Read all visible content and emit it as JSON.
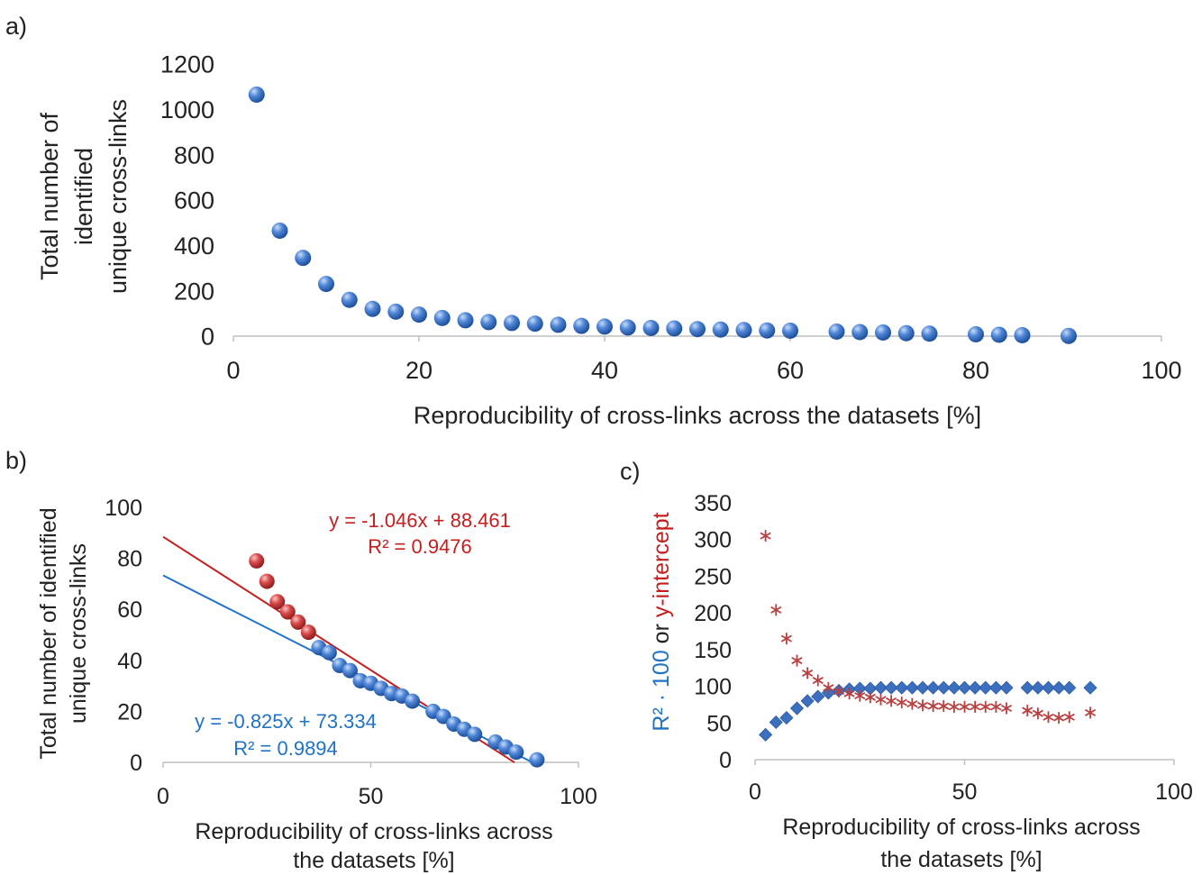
{
  "panels": {
    "a": {
      "label": "a)"
    },
    "b": {
      "label": "b)"
    },
    "c": {
      "label": "c)"
    }
  },
  "colors": {
    "blue_point": "#3d74c4",
    "red_point": "#d43b3b",
    "blue_line": "#1f72c6",
    "red_line": "#c61e1e",
    "axis": "#bfbfbf",
    "text": "#222222",
    "diamond": "#3d6fbf",
    "star": "#b84040"
  },
  "chart_data": [
    {
      "id": "a",
      "type": "scatter",
      "title": "",
      "xlabel": "Reproducibility of cross-links across the datasets [%]",
      "ylabel_lines": [
        "Total number of",
        "identified",
        "unique cross-links"
      ],
      "xlim": [
        0,
        100
      ],
      "ylim": [
        0,
        1200
      ],
      "xticks": [
        0,
        20,
        40,
        60,
        80,
        100
      ],
      "yticks": [
        0,
        200,
        400,
        600,
        800,
        1000,
        1200
      ],
      "grid": false,
      "series": [
        {
          "x": [
            2.5,
            5,
            7.5,
            10,
            12.5,
            15,
            17.5,
            20,
            22.5,
            25,
            27.5,
            30,
            32.5,
            35,
            37.5,
            40,
            42.5,
            45,
            47.5,
            50,
            52.5,
            55,
            57.5,
            60,
            65,
            67.5,
            70,
            72.5,
            75,
            80,
            82.5,
            85,
            90
          ],
          "y": [
            1065,
            465,
            345,
            230,
            160,
            120,
            108,
            95,
            80,
            70,
            62,
            58,
            55,
            50,
            45,
            42,
            38,
            36,
            34,
            31,
            29,
            27,
            25,
            24,
            20,
            18,
            16,
            13,
            11,
            8,
            6,
            4,
            1
          ]
        }
      ]
    },
    {
      "id": "b",
      "type": "scatter",
      "title": "",
      "xlabel_lines": [
        "Reproducibility of cross-links across",
        "the datasets [%]"
      ],
      "ylabel_lines": [
        "Total number of identified",
        "unique cross-links"
      ],
      "xlim": [
        0,
        100
      ],
      "ylim": [
        0,
        100
      ],
      "xticks": [
        0,
        50,
        100
      ],
      "yticks": [
        0,
        20,
        40,
        60,
        80,
        100
      ],
      "grid": false,
      "series": [
        {
          "color": "red",
          "x": [
            22.5,
            25,
            27.5,
            30,
            32.5,
            35
          ],
          "y": [
            79,
            71,
            63,
            59,
            55,
            51
          ]
        },
        {
          "color": "blue",
          "x": [
            37.5,
            40,
            42.5,
            45,
            47.5,
            50,
            52.5,
            55,
            57.5,
            60,
            65,
            67.5,
            70,
            72.5,
            75,
            80,
            82.5,
            85,
            90
          ],
          "y": [
            45,
            43,
            38,
            36,
            32,
            31,
            29,
            27,
            26,
            24,
            20,
            18,
            15,
            13,
            11,
            8,
            6,
            4,
            1
          ]
        }
      ],
      "fits": [
        {
          "color": "red",
          "slope": -1.046,
          "intercept": 88.461,
          "x_range": [
            0,
            84.6
          ],
          "eq": "y = -1.046x + 88.461",
          "r2": "R² = 0.9476"
        },
        {
          "color": "blue",
          "slope": -0.825,
          "intercept": 73.334,
          "x_range": [
            0,
            88.9
          ],
          "eq": "y = -0.825x + 73.334",
          "r2": "R² = 0.9894"
        }
      ]
    },
    {
      "id": "c",
      "type": "scatter",
      "title": "",
      "xlabel_lines": [
        "Reproducibility of cross-links across",
        "the datasets [%]"
      ],
      "ylabel_parts": [
        "R² · 100",
        " or ",
        "y-intercept"
      ],
      "xlim": [
        0,
        100
      ],
      "ylim": [
        0,
        350
      ],
      "xticks": [
        0,
        50,
        100
      ],
      "yticks": [
        0,
        50,
        100,
        150,
        200,
        250,
        300,
        350
      ],
      "grid": false,
      "series": [
        {
          "marker": "diamond",
          "x": [
            2.5,
            5,
            7.5,
            10,
            12.5,
            15,
            17.5,
            20,
            22.5,
            25,
            27.5,
            30,
            32.5,
            35,
            37.5,
            40,
            42.5,
            45,
            47.5,
            50,
            52.5,
            55,
            57.5,
            60,
            65,
            67.5,
            70,
            72.5,
            75,
            80
          ],
          "y": [
            34,
            51,
            57,
            70,
            80,
            86,
            91,
            94,
            96,
            97,
            97,
            98,
            98,
            98,
            98,
            98,
            98,
            98,
            98,
            98,
            98,
            98,
            98,
            98,
            98,
            98,
            98,
            98,
            98,
            98
          ]
        },
        {
          "marker": "asterisk",
          "x": [
            2.5,
            5,
            7.5,
            10,
            12.5,
            15,
            17.5,
            20,
            22.5,
            25,
            27.5,
            30,
            32.5,
            35,
            37.5,
            40,
            42.5,
            45,
            47.5,
            50,
            52.5,
            55,
            57.5,
            60,
            65,
            67.5,
            70,
            72.5,
            75,
            80
          ],
          "y": [
            305,
            204,
            165,
            135,
            118,
            108,
            98,
            93,
            90,
            87,
            85,
            82,
            80,
            78,
            76,
            74,
            73,
            73,
            72,
            72,
            72,
            72,
            72,
            70,
            67,
            63,
            58,
            57,
            58,
            64
          ]
        }
      ]
    }
  ]
}
